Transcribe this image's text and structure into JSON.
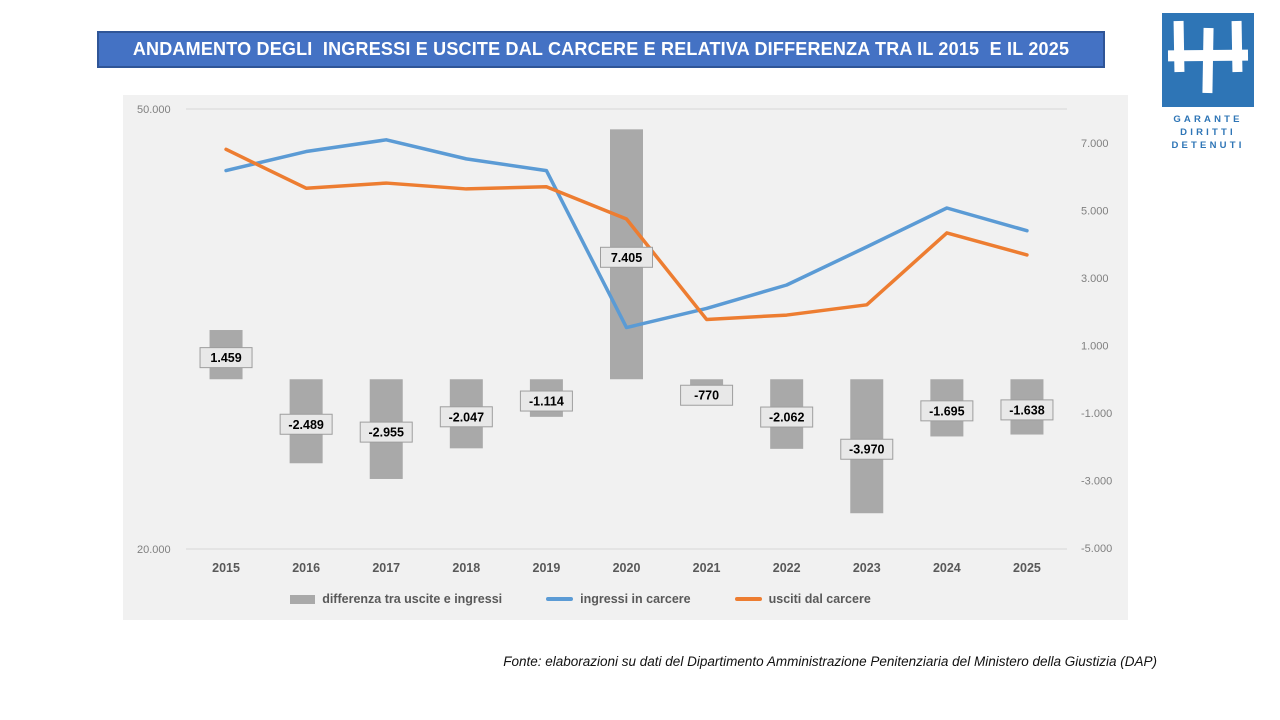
{
  "title": {
    "text": "ANDAMENTO DEGLI  INGRESSI E USCITE DAL CARCERE E RELATIVA DIFFERENZA TRA IL 2015  E IL 2025"
  },
  "logo": {
    "text_lines": [
      "GARANTE",
      "DIRITTI",
      "DETENUTI"
    ]
  },
  "footer": {
    "text": "Fonte: elaborazioni su dati del Dipartimento Amministrazione Penitenziaria del Ministero della Giustizia (DAP)"
  },
  "colors": {
    "banner_bg": "#4472C4",
    "banner_border": "#2F5597",
    "logo_blue": "#2E75B6",
    "chart_bg": "#F1F1F1",
    "bar": "#A9A9A9",
    "line_ingressi": "#5B9BD5",
    "line_usciti": "#ED7D31",
    "gridline": "#DCDCDC",
    "axis_text": "#808080",
    "category_text": "#595959",
    "label_box_fill": "#E8E8E8",
    "label_box_border": "#9E9E9E"
  },
  "chart_data": {
    "type": "combo-bar-line",
    "categories": [
      "2015",
      "2016",
      "2017",
      "2018",
      "2019",
      "2020",
      "2021",
      "2022",
      "2023",
      "2024",
      "2025"
    ],
    "series": [
      {
        "name": "differenza tra uscite e ingressi",
        "type": "bar",
        "axis": "right",
        "values": [
          1459,
          -2489,
          -2955,
          -2047,
          -1114,
          7405,
          -770,
          -2062,
          -3970,
          -1695,
          -1638
        ],
        "labels": [
          "1.459",
          "-2.489",
          "-2.955",
          "-2.047",
          "-1.114",
          "7.405",
          "-770",
          "-2.062",
          "-3.970",
          "-1.695",
          "-1.638"
        ]
      },
      {
        "name": "ingressi in carcere",
        "type": "line",
        "axis": "left",
        "estimated": true,
        "values": [
          45800,
          47100,
          47900,
          46600,
          45800,
          35100,
          36400,
          38000,
          40600,
          43250,
          41700
        ]
      },
      {
        "name": "usciti dal carcere",
        "type": "line",
        "axis": "left",
        "estimated": true,
        "values": [
          47250,
          44600,
          44950,
          44550,
          44700,
          42500,
          35650,
          35950,
          36650,
          41550,
          40050
        ]
      }
    ],
    "left_axis": {
      "min": 20000,
      "max": 50000,
      "tick_labels": [
        "50.000",
        "20.000"
      ],
      "tick_values": [
        50000,
        20000
      ]
    },
    "right_axis": {
      "min": -5000,
      "max": 7000,
      "tick_labels": [
        "7.000",
        "5.000",
        "3.000",
        "1.000",
        "-1.000",
        "-3.000",
        "-5.000"
      ],
      "tick_values": [
        7000,
        5000,
        3000,
        1000,
        -1000,
        -3000,
        -5000
      ]
    },
    "legend_position": "bottom",
    "grid": "minimal"
  }
}
